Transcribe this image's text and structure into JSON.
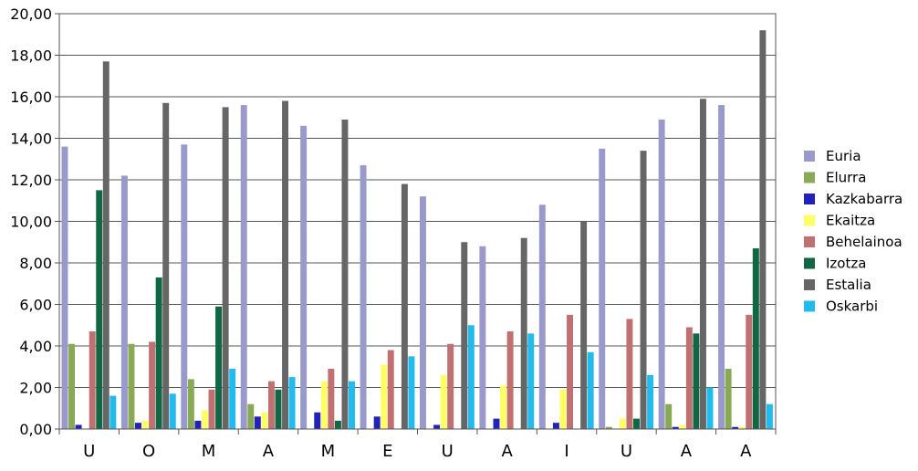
{
  "chart_data": {
    "type": "bar",
    "title": "",
    "xlabel": "",
    "ylabel": "",
    "ylim": [
      0,
      20
    ],
    "yticks": [
      "0,00",
      "2,00",
      "4,00",
      "6,00",
      "8,00",
      "10,00",
      "12,00",
      "14,00",
      "16,00",
      "18,00",
      "20,00"
    ],
    "grid": "horizontal",
    "legend_position": "right",
    "categories": [
      "U",
      "O",
      "M",
      "A",
      "M",
      "E",
      "U",
      "A",
      "I",
      "U",
      "A",
      "A"
    ],
    "series": [
      {
        "name": "Euria",
        "color": "#9999cc",
        "values": [
          13.6,
          12.2,
          13.7,
          15.6,
          14.6,
          12.7,
          11.2,
          8.8,
          10.8,
          13.5,
          14.9,
          15.6
        ]
      },
      {
        "name": "Elurra",
        "color": "#88aa55",
        "values": [
          4.1,
          4.1,
          2.4,
          1.2,
          0.0,
          0.0,
          0.0,
          0.0,
          0.0,
          0.1,
          1.2,
          2.9
        ]
      },
      {
        "name": "Kazkabarra",
        "color": "#2222bb",
        "values": [
          0.2,
          0.3,
          0.4,
          0.6,
          0.8,
          0.6,
          0.2,
          0.5,
          0.3,
          0.0,
          0.1,
          0.1
        ]
      },
      {
        "name": "Ekaitza",
        "color": "#ffff66",
        "values": [
          0.0,
          0.4,
          0.9,
          0.8,
          2.3,
          3.1,
          2.6,
          2.1,
          1.9,
          0.5,
          0.2,
          0.1
        ]
      },
      {
        "name": "Behelainoa",
        "color": "#c07070",
        "values": [
          4.7,
          4.2,
          1.9,
          2.3,
          2.9,
          3.8,
          4.1,
          4.7,
          5.5,
          5.3,
          4.9,
          5.5
        ]
      },
      {
        "name": "Izotza",
        "color": "#116644",
        "values": [
          11.5,
          7.3,
          5.9,
          1.9,
          0.4,
          0.0,
          0.0,
          0.0,
          0.0,
          0.5,
          4.6,
          8.7
        ]
      },
      {
        "name": "Estalia",
        "color": "#666666",
        "values": [
          17.7,
          15.7,
          15.5,
          15.8,
          14.9,
          11.8,
          9.0,
          9.2,
          10.0,
          13.4,
          15.9,
          19.2
        ]
      },
      {
        "name": "Oskarbi",
        "color": "#22bbee",
        "values": [
          1.6,
          1.7,
          2.9,
          2.5,
          2.3,
          3.5,
          5.0,
          4.6,
          3.7,
          2.6,
          2.0,
          1.2
        ]
      }
    ]
  }
}
